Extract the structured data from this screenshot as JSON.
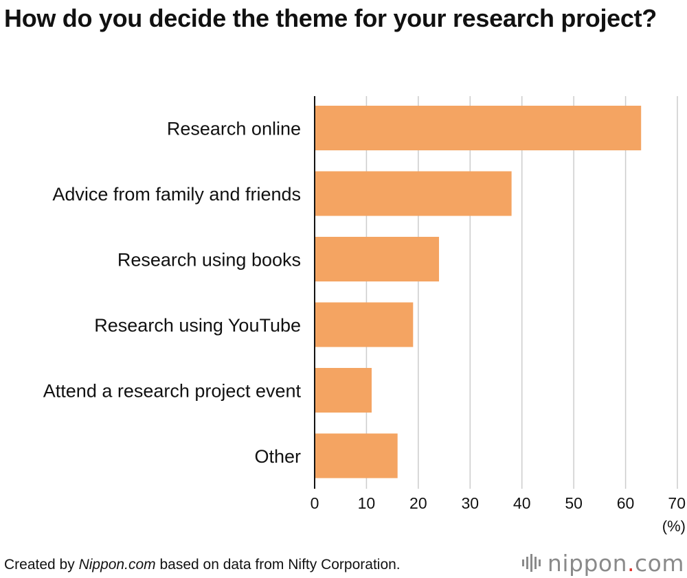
{
  "title": "How do you decide the theme for your research project?",
  "colors": {
    "bar": "#f4a462",
    "grid": "#cccccc",
    "axis": "#111111"
  },
  "footer": {
    "prefix": "Created by ",
    "source_name": "Nippon.com",
    "suffix": " based on data from Nifty Corporation."
  },
  "logo": {
    "text_main": "nippon",
    "text_dot": ".",
    "text_tld": "com",
    "icon": "sound-bars-icon"
  },
  "chart_data": {
    "type": "bar",
    "orientation": "horizontal",
    "categories": [
      "Research online",
      "Advice from family and friends",
      "Research using books",
      "Research using YouTube",
      "Attend a research project event",
      "Other"
    ],
    "values": [
      63,
      38,
      24,
      19,
      11,
      16
    ],
    "xlim": [
      0,
      70
    ],
    "xticks": [
      0,
      10,
      20,
      30,
      40,
      50,
      60,
      70
    ],
    "unit": "(%)",
    "grid": true
  }
}
